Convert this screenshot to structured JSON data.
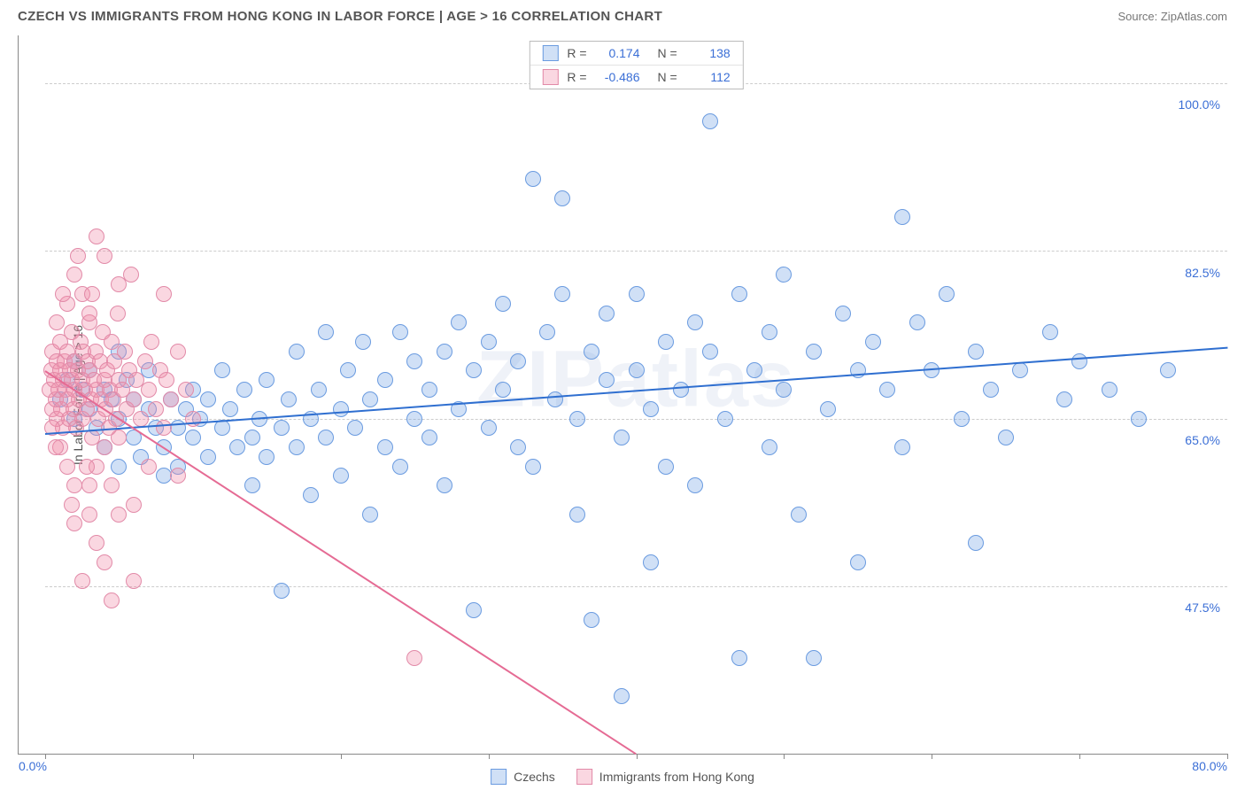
{
  "header": {
    "title": "CZECH VS IMMIGRANTS FROM HONG KONG IN LABOR FORCE | AGE > 16 CORRELATION CHART",
    "source": "Source: ZipAtlas.com"
  },
  "chart": {
    "type": "scatter",
    "ylabel": "In Labor Force | Age > 16",
    "watermark": "ZIPatlas",
    "xlim": [
      0,
      80
    ],
    "ylim": [
      30,
      105
    ],
    "x_axis_label_left": "0.0%",
    "x_axis_label_right": "80.0%",
    "y_ticks": [
      {
        "v": 47.5,
        "label": "47.5%"
      },
      {
        "v": 65.0,
        "label": "65.0%"
      },
      {
        "v": 82.5,
        "label": "82.5%"
      },
      {
        "v": 100.0,
        "label": "100.0%"
      }
    ],
    "x_ticks_minor": [
      0,
      10,
      20,
      30,
      40,
      50,
      60,
      70,
      80
    ],
    "background_color": "#ffffff",
    "grid_color": "#cccccc",
    "axis_color": "#888888",
    "tick_label_color": "#3b6fd6",
    "marker_radius": 9,
    "marker_border_width": 1,
    "label_fontsize": 14,
    "title_fontsize": 15,
    "series": [
      {
        "name": "Czechs",
        "fill_color": "rgba(120,165,230,0.35)",
        "stroke_color": "#6a9be0",
        "line_color": "#2f6fd0",
        "R": "0.174",
        "N": "138",
        "trend": {
          "x1": 0,
          "y1": 63.5,
          "x2": 80,
          "y2": 72.5
        },
        "points": [
          [
            1,
            67
          ],
          [
            1.5,
            69
          ],
          [
            2,
            65
          ],
          [
            2,
            71
          ],
          [
            2.5,
            68
          ],
          [
            3,
            66
          ],
          [
            3,
            70
          ],
          [
            3.5,
            64
          ],
          [
            4,
            68
          ],
          [
            4,
            62
          ],
          [
            4.5,
            67
          ],
          [
            5,
            60
          ],
          [
            5,
            65
          ],
          [
            5,
            72
          ],
          [
            5.5,
            69
          ],
          [
            6,
            63
          ],
          [
            6,
            67
          ],
          [
            6.5,
            61
          ],
          [
            7,
            66
          ],
          [
            7,
            70
          ],
          [
            7.5,
            64
          ],
          [
            8,
            59
          ],
          [
            8,
            62
          ],
          [
            8.5,
            67
          ],
          [
            9,
            64
          ],
          [
            9,
            60
          ],
          [
            9.5,
            66
          ],
          [
            10,
            63
          ],
          [
            10,
            68
          ],
          [
            10.5,
            65
          ],
          [
            11,
            61
          ],
          [
            11,
            67
          ],
          [
            12,
            64
          ],
          [
            12,
            70
          ],
          [
            12.5,
            66
          ],
          [
            13,
            62
          ],
          [
            13.5,
            68
          ],
          [
            14,
            63
          ],
          [
            14,
            58
          ],
          [
            14.5,
            65
          ],
          [
            15,
            69
          ],
          [
            15,
            61
          ],
          [
            16,
            64
          ],
          [
            16,
            47
          ],
          [
            16.5,
            67
          ],
          [
            17,
            62
          ],
          [
            17,
            72
          ],
          [
            18,
            65
          ],
          [
            18,
            57
          ],
          [
            18.5,
            68
          ],
          [
            19,
            63
          ],
          [
            19,
            74
          ],
          [
            20,
            66
          ],
          [
            20,
            59
          ],
          [
            20.5,
            70
          ],
          [
            21,
            64
          ],
          [
            21.5,
            73
          ],
          [
            22,
            67
          ],
          [
            22,
            55
          ],
          [
            23,
            69
          ],
          [
            23,
            62
          ],
          [
            24,
            74
          ],
          [
            24,
            60
          ],
          [
            25,
            65
          ],
          [
            25,
            71
          ],
          [
            26,
            63
          ],
          [
            26,
            68
          ],
          [
            27,
            72
          ],
          [
            27,
            58
          ],
          [
            28,
            66
          ],
          [
            28,
            75
          ],
          [
            29,
            70
          ],
          [
            29,
            45
          ],
          [
            30,
            64
          ],
          [
            30,
            73
          ],
          [
            31,
            68
          ],
          [
            31,
            77
          ],
          [
            32,
            62
          ],
          [
            32,
            71
          ],
          [
            33,
            90
          ],
          [
            33,
            60
          ],
          [
            34,
            74
          ],
          [
            34.5,
            67
          ],
          [
            35,
            78
          ],
          [
            35,
            88
          ],
          [
            36,
            65
          ],
          [
            36,
            55
          ],
          [
            37,
            72
          ],
          [
            37,
            44
          ],
          [
            38,
            69
          ],
          [
            38,
            76
          ],
          [
            39,
            63
          ],
          [
            39,
            36
          ],
          [
            40,
            70
          ],
          [
            40,
            78
          ],
          [
            41,
            66
          ],
          [
            41,
            50
          ],
          [
            42,
            73
          ],
          [
            42,
            60
          ],
          [
            43,
            68
          ],
          [
            44,
            75
          ],
          [
            44,
            58
          ],
          [
            45,
            72
          ],
          [
            45,
            96
          ],
          [
            46,
            65
          ],
          [
            47,
            78
          ],
          [
            47,
            40
          ],
          [
            48,
            70
          ],
          [
            49,
            74
          ],
          [
            49,
            62
          ],
          [
            50,
            68
          ],
          [
            50,
            80
          ],
          [
            51,
            55
          ],
          [
            52,
            72
          ],
          [
            52,
            40
          ],
          [
            53,
            66
          ],
          [
            54,
            76
          ],
          [
            55,
            70
          ],
          [
            55,
            50
          ],
          [
            56,
            73
          ],
          [
            57,
            68
          ],
          [
            58,
            86
          ],
          [
            58,
            62
          ],
          [
            59,
            75
          ],
          [
            60,
            70
          ],
          [
            61,
            78
          ],
          [
            62,
            65
          ],
          [
            63,
            72
          ],
          [
            63,
            52
          ],
          [
            64,
            68
          ],
          [
            65,
            63
          ],
          [
            66,
            70
          ],
          [
            68,
            74
          ],
          [
            69,
            67
          ],
          [
            70,
            71
          ],
          [
            72,
            68
          ],
          [
            74,
            65
          ],
          [
            76,
            70
          ]
        ]
      },
      {
        "name": "Immigrants from Hong Kong",
        "fill_color": "rgba(240,140,170,0.35)",
        "stroke_color": "#e28aa8",
        "line_color": "#e56b94",
        "R": "-0.486",
        "N": "112",
        "trend": {
          "x1": 0,
          "y1": 70,
          "x2": 40,
          "y2": 30
        },
        "points": [
          [
            0.3,
            68
          ],
          [
            0.4,
            70
          ],
          [
            0.5,
            66
          ],
          [
            0.5,
            72
          ],
          [
            0.6,
            69
          ],
          [
            0.7,
            67
          ],
          [
            0.8,
            71
          ],
          [
            0.8,
            65
          ],
          [
            0.9,
            68
          ],
          [
            1,
            70
          ],
          [
            1,
            73
          ],
          [
            1.1,
            66
          ],
          [
            1.2,
            69
          ],
          [
            1.2,
            64
          ],
          [
            1.3,
            71
          ],
          [
            1.4,
            68
          ],
          [
            1.5,
            67
          ],
          [
            1.5,
            72
          ],
          [
            1.6,
            65
          ],
          [
            1.7,
            70
          ],
          [
            1.8,
            69
          ],
          [
            1.8,
            74
          ],
          [
            1.9,
            66
          ],
          [
            2,
            68
          ],
          [
            2,
            71
          ],
          [
            2.1,
            64
          ],
          [
            2.2,
            70
          ],
          [
            2.3,
            67
          ],
          [
            2.4,
            73
          ],
          [
            2.5,
            69
          ],
          [
            2.5,
            65
          ],
          [
            2.6,
            72
          ],
          [
            2.7,
            68
          ],
          [
            2.8,
            66
          ],
          [
            2.9,
            71
          ],
          [
            3,
            70
          ],
          [
            3,
            75
          ],
          [
            3.1,
            67
          ],
          [
            3.2,
            63
          ],
          [
            3.3,
            69
          ],
          [
            3.4,
            72
          ],
          [
            3.5,
            68
          ],
          [
            3.5,
            60
          ],
          [
            3.6,
            65
          ],
          [
            3.7,
            71
          ],
          [
            3.8,
            67
          ],
          [
            3.9,
            74
          ],
          [
            4,
            69
          ],
          [
            4,
            62
          ],
          [
            4.1,
            66
          ],
          [
            4.2,
            70
          ],
          [
            4.3,
            64
          ],
          [
            4.4,
            68
          ],
          [
            4.5,
            73
          ],
          [
            4.5,
            58
          ],
          [
            4.6,
            67
          ],
          [
            4.7,
            71
          ],
          [
            4.8,
            65
          ],
          [
            4.9,
            76
          ],
          [
            5,
            69
          ],
          [
            5,
            63
          ],
          [
            5.2,
            68
          ],
          [
            5.4,
            72
          ],
          [
            5.5,
            66
          ],
          [
            5.7,
            70
          ],
          [
            5.8,
            80
          ],
          [
            6,
            67
          ],
          [
            6,
            56
          ],
          [
            6.2,
            69
          ],
          [
            6.5,
            65
          ],
          [
            6.8,
            71
          ],
          [
            7,
            68
          ],
          [
            7,
            60
          ],
          [
            7.2,
            73
          ],
          [
            7.5,
            66
          ],
          [
            7.8,
            70
          ],
          [
            8,
            64
          ],
          [
            8,
            78
          ],
          [
            8.2,
            69
          ],
          [
            8.5,
            67
          ],
          [
            9,
            72
          ],
          [
            9,
            59
          ],
          [
            9.5,
            68
          ],
          [
            10,
            65
          ],
          [
            2,
            80
          ],
          [
            2.5,
            78
          ],
          [
            3,
            76
          ],
          [
            1.5,
            77
          ],
          [
            2,
            54
          ],
          [
            3,
            55
          ],
          [
            3.5,
            52
          ],
          [
            4,
            50
          ],
          [
            2.5,
            48
          ],
          [
            4.5,
            46
          ],
          [
            3,
            58
          ],
          [
            5,
            55
          ],
          [
            6,
            48
          ],
          [
            4,
            82
          ],
          [
            5,
            79
          ],
          [
            3.5,
            84
          ],
          [
            1,
            62
          ],
          [
            1.5,
            60
          ],
          [
            2,
            58
          ],
          [
            0.8,
            75
          ],
          [
            1.2,
            78
          ],
          [
            25,
            40
          ],
          [
            0.5,
            64
          ],
          [
            0.7,
            62
          ],
          [
            1.8,
            56
          ],
          [
            2.2,
            82
          ],
          [
            2.8,
            60
          ],
          [
            3.2,
            78
          ]
        ]
      }
    ],
    "legend_bottom": [
      {
        "label": "Czechs",
        "series": 0
      },
      {
        "label": "Immigrants from Hong Kong",
        "series": 1
      }
    ]
  }
}
